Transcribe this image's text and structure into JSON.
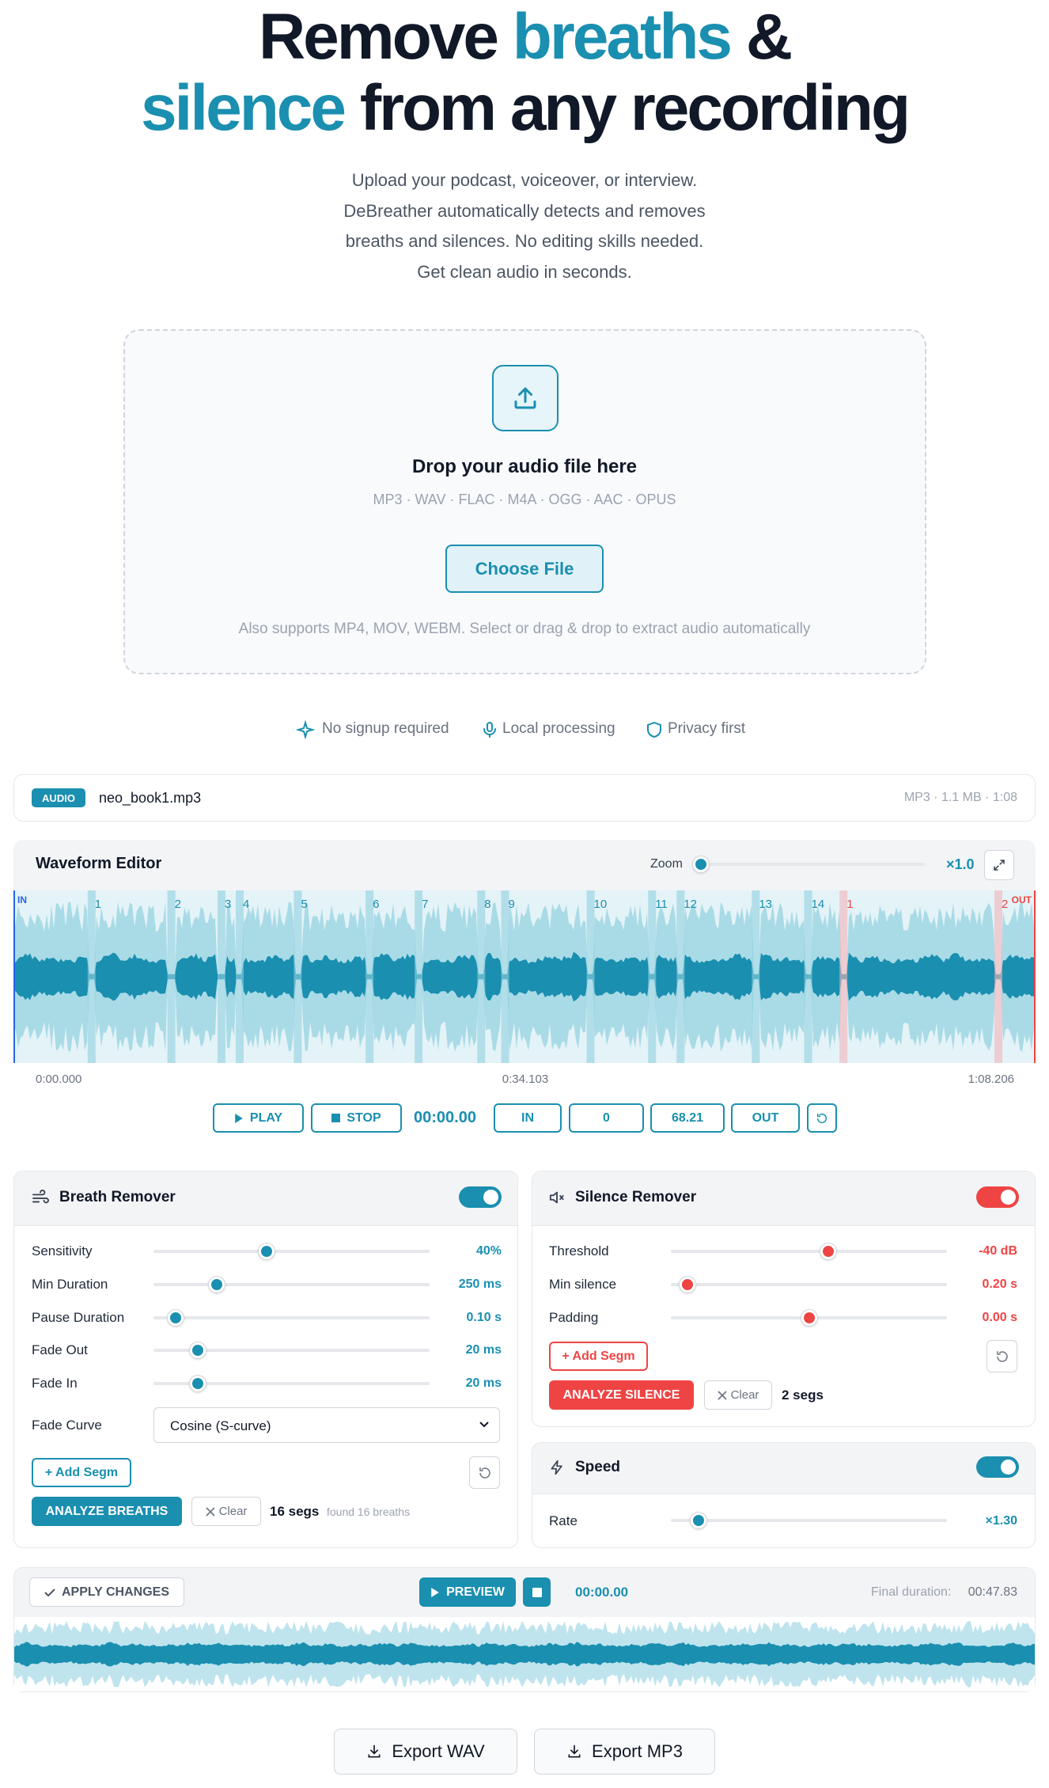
{
  "hero": {
    "title_parts": [
      "Remove",
      "breaths",
      "&",
      "silence",
      "from any recording"
    ],
    "subtitle_lines": [
      "Upload your podcast, voiceover, or interview.",
      "DeBreather automatically detects and removes",
      "breaths and silences. No editing skills needed.",
      "Get clean audio in seconds."
    ]
  },
  "upload": {
    "heading": "Drop your audio file here",
    "formats": "MP3 · WAV · FLAC · M4A · OGG · AAC · OPUS",
    "button": "Choose File",
    "note": "Also supports MP4, MOV, WEBM. Select or drag & drop to extract audio automatically"
  },
  "features": [
    "No signup required",
    "Local processing",
    "Privacy first"
  ],
  "file": {
    "badge": "AUDIO",
    "name": "neo_book1.mp3",
    "meta": "MP3 · 1.1 MB · 1:08"
  },
  "editor": {
    "title": "Waveform Editor",
    "zoom_label": "Zoom",
    "zoom_value": "×1.0",
    "in_marker": "IN",
    "out_marker": "OUT",
    "markers": [
      "1",
      "2",
      "3",
      "4",
      "5",
      "6",
      "7",
      "8",
      "9",
      "10",
      "11",
      "12",
      "13",
      "14",
      "1",
      "2"
    ],
    "times": [
      "0:00.000",
      "0:34.103",
      "1:08.206"
    ],
    "controls": {
      "play": "PLAY",
      "stop": "STOP",
      "time": "00:00.00",
      "in": "IN",
      "in_value": "0",
      "out_value": "68.21",
      "out": "OUT"
    }
  },
  "breath": {
    "title": "Breath Remover",
    "sliders": [
      {
        "label": "Sensitivity",
        "value": "40%"
      },
      {
        "label": "Min Duration",
        "value": "250 ms"
      },
      {
        "label": "Pause Duration",
        "value": "0.10 s"
      },
      {
        "label": "Fade Out",
        "value": "20 ms"
      },
      {
        "label": "Fade In",
        "value": "20 ms"
      }
    ],
    "fade_curve_label": "Fade Curve",
    "fade_curve_value": "Cosine (S-curve)",
    "add_segment": "+ Add Segm",
    "analyze": "ANALYZE BREATHS",
    "clear": "Clear",
    "seg_count": "16 segs",
    "found": "found 16 breaths"
  },
  "silence": {
    "title": "Silence Remover",
    "sliders": [
      {
        "label": "Threshold",
        "value": "-40 dB"
      },
      {
        "label": "Min silence",
        "value": "0.20 s"
      },
      {
        "label": "Padding",
        "value": "0.00 s"
      }
    ],
    "add_segment": "+ Add Segm",
    "analyze": "ANALYZE SILENCE",
    "clear": "Clear",
    "seg_count": "2 segs"
  },
  "speed": {
    "title": "Speed",
    "rate_label": "Rate",
    "rate_value": "×1.30"
  },
  "preview": {
    "apply": "APPLY CHANGES",
    "preview": "PREVIEW",
    "time": "00:00.00",
    "final_label": "Final duration:",
    "final_value": "00:47.83"
  },
  "export": [
    "Export WAV",
    "Export MP3"
  ]
}
